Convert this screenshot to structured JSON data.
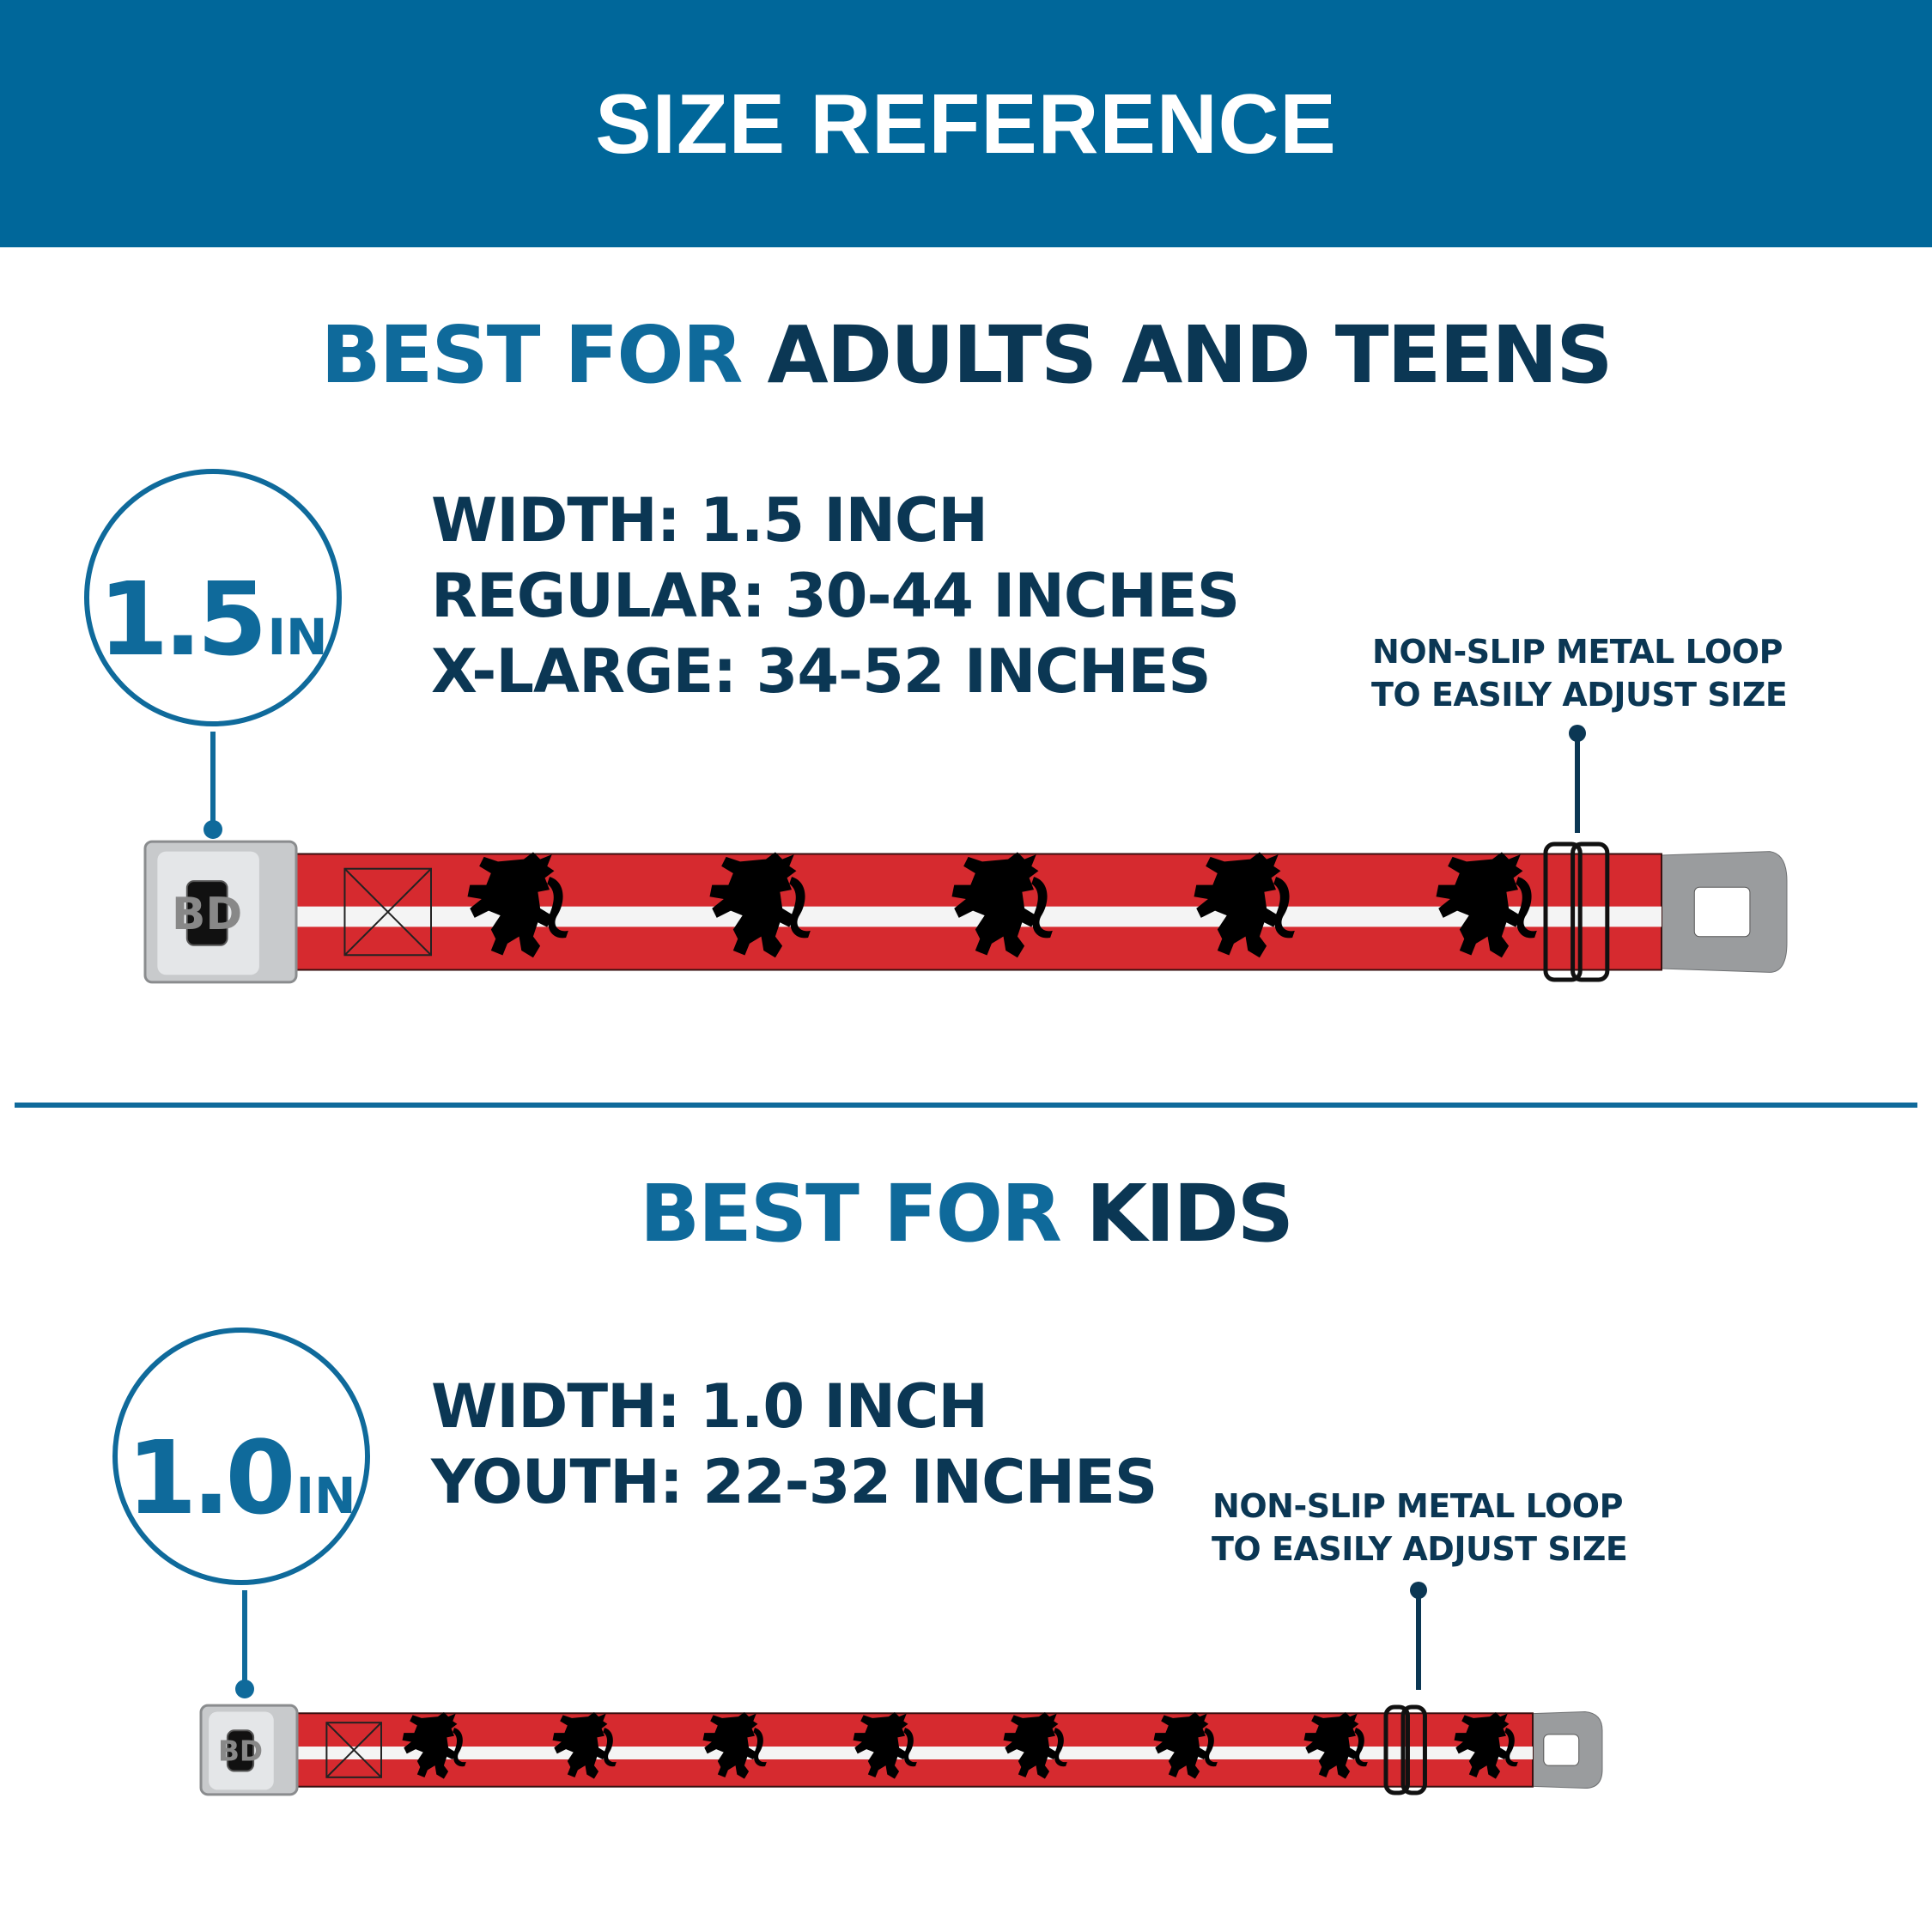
{
  "header": {
    "title": "SIZE REFERENCE"
  },
  "colors": {
    "header_bg": "#00679a",
    "accent_blue": "#0f6a9b",
    "dark_navy": "#0b3754",
    "strap_red": "#d62a2f",
    "strap_stripe": "#f4f4f4",
    "lion": "#000000"
  },
  "adults": {
    "heading_accent": "BEST FOR",
    "heading_main": "ADULTS AND TEENS",
    "badge_number": "1.5",
    "badge_unit": "IN",
    "specs": [
      "WIDTH: 1.5 INCH",
      "REGULAR: 30-44 INCHES",
      "X-LARGE: 34-52 INCHES"
    ],
    "callout": [
      "NON-SLIP METAL LOOP",
      "TO EASILY ADJUST SIZE"
    ],
    "buckle_logo": "BD"
  },
  "kids": {
    "heading_accent": "BEST FOR",
    "heading_main": "KIDS",
    "badge_number": "1.0",
    "badge_unit": "IN",
    "specs": [
      "WIDTH: 1.0 INCH",
      "YOUTH: 22-32 INCHES"
    ],
    "callout": [
      "NON-SLIP METAL LOOP",
      "TO EASILY ADJUST SIZE"
    ],
    "buckle_logo": "BD"
  }
}
